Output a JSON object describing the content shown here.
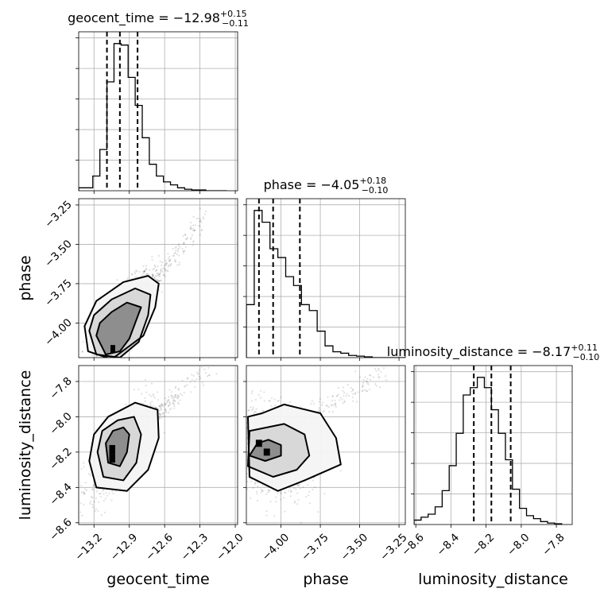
{
  "chart_data": {
    "type": "corner",
    "parameters": [
      {
        "name": "geocent_time",
        "title": "geocent_time = −12.98",
        "title_sup": "+0.15",
        "title_sub": "−0.11",
        "axis_label": "geocent_time",
        "range": [
          -13.33,
          -11.98
        ],
        "ticks": [
          -13.2,
          -12.9,
          -12.6,
          -12.3,
          -12.0
        ],
        "tick_labels": [
          "−13.2",
          "−12.9",
          "−12.6",
          "−12.3",
          "−12.0"
        ],
        "quantiles": [
          -13.09,
          -12.98,
          -12.83
        ],
        "histogram": {
          "edges": [
            -13.33,
            -13.27,
            -13.21,
            -13.15,
            -13.09,
            -13.03,
            -12.97,
            -12.91,
            -12.85,
            -12.79,
            -12.73,
            -12.67,
            -12.61,
            -12.55,
            -12.49,
            -12.43,
            -12.37,
            -12.31,
            -12.25,
            -12.19,
            -12.13,
            -12.07
          ],
          "counts": [
            0.02,
            0.02,
            0.1,
            0.28,
            0.74,
            1.0,
            0.99,
            0.77,
            0.58,
            0.36,
            0.18,
            0.1,
            0.06,
            0.04,
            0.02,
            0.01,
            0.005,
            0.005,
            0.0,
            0.0,
            0.0
          ]
        }
      },
      {
        "name": "phase",
        "title": "phase = −4.05",
        "title_sup": "+0.18",
        "title_sub": "−0.10",
        "axis_label": "phase",
        "range": [
          -4.22,
          -3.21
        ],
        "ticks": [
          -4.0,
          -3.75,
          -3.5,
          -3.25
        ],
        "tick_labels": [
          "−4.00",
          "−3.75",
          "−3.50",
          "−3.25"
        ],
        "quantiles": [
          -4.14,
          -4.05,
          -3.88
        ],
        "histogram": {
          "edges": [
            -4.22,
            -4.17,
            -4.12,
            -4.07,
            -4.02,
            -3.97,
            -3.92,
            -3.87,
            -3.82,
            -3.77,
            -3.72,
            -3.67,
            -3.62,
            -3.57,
            -3.52,
            -3.47,
            -3.42,
            -3.37,
            -3.32,
            -3.27,
            -3.21
          ],
          "counts": [
            0.36,
            1.0,
            0.92,
            0.74,
            0.68,
            0.55,
            0.49,
            0.36,
            0.32,
            0.18,
            0.08,
            0.04,
            0.03,
            0.015,
            0.01,
            0.005,
            0.0,
            0.0,
            0.0,
            0.0
          ]
        }
      },
      {
        "name": "luminosity_distance",
        "title": "luminosity_distance = −8.17",
        "title_sup": "+0.11",
        "title_sub": "−0.10",
        "axis_label": "luminosity_distance",
        "range": [
          -8.61,
          -7.71
        ],
        "ticks": [
          -8.6,
          -8.4,
          -8.2,
          -8.0,
          -7.8
        ],
        "tick_labels": [
          "−8.6",
          "−8.4",
          "−8.2",
          "−8.0",
          "−7.8"
        ],
        "quantiles": [
          -8.27,
          -8.17,
          -8.06
        ],
        "histogram": {
          "edges": [
            -8.61,
            -8.57,
            -8.53,
            -8.49,
            -8.45,
            -8.41,
            -8.37,
            -8.33,
            -8.29,
            -8.25,
            -8.21,
            -8.17,
            -8.13,
            -8.09,
            -8.05,
            -8.01,
            -7.97,
            -7.93,
            -7.89,
            -7.85,
            -7.81,
            -7.77
          ],
          "counts": [
            0.03,
            0.05,
            0.07,
            0.12,
            0.23,
            0.4,
            0.62,
            0.88,
            0.93,
            1.0,
            0.93,
            0.78,
            0.62,
            0.44,
            0.24,
            0.11,
            0.06,
            0.04,
            0.02,
            0.01,
            0.005
          ]
        }
      }
    ],
    "joint": [
      {
        "x": "geocent_time",
        "y": "phase",
        "scatter": {
          "count": 900,
          "mean": [
            -12.95,
            -3.92
          ],
          "sd": [
            0.12,
            0.12
          ],
          "corr": 0.8,
          "tail": {
            "from": [
              -12.75,
              -3.8
            ],
            "to": [
              -12.25,
              -3.3
            ],
            "count": 180
          }
        },
        "contours": [
          [
            [
              -13.18,
              -4.08
            ],
            [
              -13.1,
              -4.2
            ],
            [
              -12.98,
              -4.18
            ],
            [
              -12.9,
              -4.1
            ],
            [
              -12.85,
              -4.0
            ],
            [
              -12.8,
              -3.9
            ],
            [
              -12.92,
              -3.87
            ],
            [
              -13.05,
              -3.93
            ],
            [
              -13.15,
              -4.0
            ]
          ],
          [
            [
              -13.24,
              -4.05
            ],
            [
              -13.18,
              -4.2
            ],
            [
              -12.98,
              -4.22
            ],
            [
              -12.82,
              -4.12
            ],
            [
              -12.74,
              -3.95
            ],
            [
              -12.72,
              -3.82
            ],
            [
              -12.85,
              -3.78
            ],
            [
              -13.05,
              -3.85
            ],
            [
              -13.2,
              -3.95
            ]
          ],
          [
            [
              -13.28,
              -4.02
            ],
            [
              -13.25,
              -4.18
            ],
            [
              -13.05,
              -4.23
            ],
            [
              -12.78,
              -4.08
            ],
            [
              -12.68,
              -3.9
            ],
            [
              -12.65,
              -3.75
            ],
            [
              -12.74,
              -3.7
            ],
            [
              -12.95,
              -3.74
            ],
            [
              -13.18,
              -3.86
            ]
          ]
        ],
        "dense_cells": [
          {
            "x": [
              -13.06,
              -13.02
            ],
            "y": [
              -4.19,
              -4.14
            ]
          }
        ]
      },
      {
        "x": "geocent_time",
        "y": "luminosity_distance",
        "scatter": {
          "count": 900,
          "mean": [
            -12.97,
            -8.18
          ],
          "sd": [
            0.13,
            0.13
          ],
          "corr": 0.75,
          "tail": {
            "from": [
              -12.7,
              -8.0
            ],
            "to": [
              -12.2,
              -7.7
            ],
            "count": 150
          }
        },
        "contours": [
          [
            [
              -13.1,
              -8.15
            ],
            [
              -13.08,
              -8.26
            ],
            [
              -12.98,
              -8.28
            ],
            [
              -12.92,
              -8.2
            ],
            [
              -12.9,
              -8.1
            ],
            [
              -12.95,
              -8.06
            ],
            [
              -13.04,
              -8.08
            ]
          ],
          [
            [
              -13.17,
              -8.2
            ],
            [
              -13.12,
              -8.34
            ],
            [
              -12.95,
              -8.36
            ],
            [
              -12.84,
              -8.26
            ],
            [
              -12.8,
              -8.1
            ],
            [
              -12.86,
              -8.0
            ],
            [
              -13.0,
              -8.02
            ],
            [
              -13.13,
              -8.08
            ]
          ],
          [
            [
              -13.24,
              -8.25
            ],
            [
              -13.18,
              -8.4
            ],
            [
              -12.92,
              -8.42
            ],
            [
              -12.74,
              -8.3
            ],
            [
              -12.65,
              -8.12
            ],
            [
              -12.66,
              -7.96
            ],
            [
              -12.85,
              -7.92
            ],
            [
              -13.08,
              -8.0
            ],
            [
              -13.2,
              -8.1
            ]
          ]
        ],
        "dense_cells": [
          {
            "x": [
              -13.07,
              -13.02
            ],
            "y": [
              -8.21,
              -8.16
            ]
          },
          {
            "x": [
              -13.07,
              -13.02
            ],
            "y": [
              -8.26,
              -8.21
            ]
          }
        ]
      },
      {
        "x": "phase",
        "y": "luminosity_distance",
        "scatter": {
          "count": 900,
          "mean": [
            -4.05,
            -8.2
          ],
          "sd": [
            0.12,
            0.13
          ],
          "corr": -0.25,
          "tail": {
            "from": [
              -3.9,
              -8.05
            ],
            "to": [
              -3.35,
              -7.75
            ],
            "count": 160
          }
        },
        "contours": [
          [
            [
              -4.15,
              -8.15
            ],
            [
              -4.2,
              -8.22
            ],
            [
              -4.1,
              -8.25
            ],
            [
              -4.0,
              -8.22
            ],
            [
              -4.0,
              -8.16
            ],
            [
              -4.08,
              -8.13
            ]
          ],
          [
            [
              -4.2,
              -8.08
            ],
            [
              -4.21,
              -8.28
            ],
            [
              -4.05,
              -8.34
            ],
            [
              -3.9,
              -8.3
            ],
            [
              -3.82,
              -8.22
            ],
            [
              -3.85,
              -8.1
            ],
            [
              -3.98,
              -8.04
            ]
          ],
          [
            [
              -4.21,
              -8.0
            ],
            [
              -4.2,
              -8.34
            ],
            [
              -4.02,
              -8.42
            ],
            [
              -3.85,
              -8.36
            ],
            [
              -3.62,
              -8.27
            ],
            [
              -3.65,
              -8.12
            ],
            [
              -3.75,
              -7.98
            ],
            [
              -3.98,
              -7.93
            ],
            [
              -4.12,
              -7.98
            ]
          ]
        ],
        "dense_cells": [
          {
            "x": [
              -4.16,
              -4.12
            ],
            "y": [
              -8.17,
              -8.13
            ]
          },
          {
            "x": [
              -4.11,
              -4.07
            ],
            "y": [
              -8.22,
              -8.18
            ]
          }
        ]
      }
    ]
  }
}
